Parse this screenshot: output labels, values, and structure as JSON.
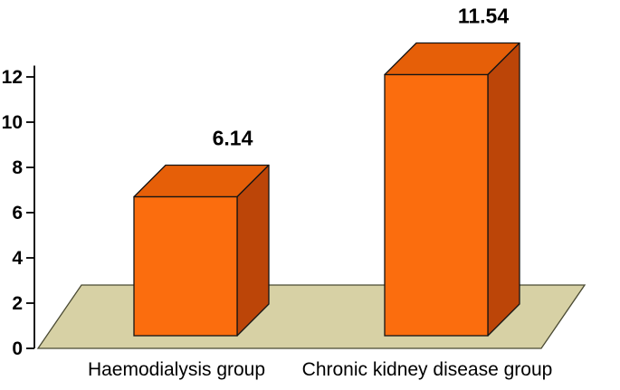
{
  "chart_data": {
    "type": "bar",
    "projection": "3d",
    "title": "",
    "xlabel": "",
    "ylabel": "",
    "categories": [
      "Haemodialysis group",
      "Chronic kidney disease group"
    ],
    "series": [
      {
        "name": "",
        "values": [
          6.14,
          11.54
        ]
      }
    ],
    "data_labels": [
      "6.14",
      "11.54"
    ],
    "yticks": [
      0,
      2,
      4,
      6,
      8,
      10,
      12
    ],
    "ylim": [
      0,
      12
    ],
    "grid": false,
    "legend": "none",
    "colors": {
      "bar_front": "#FB6D0E",
      "bar_top": "#E65F08",
      "bar_side": "#BC4508",
      "bar_outline": "#141414",
      "floor_fill": "#D7D1A5",
      "floor_outline": "#4A4A33",
      "axis": "#000000",
      "text": "#000000",
      "background": "#FFFFFF"
    }
  }
}
